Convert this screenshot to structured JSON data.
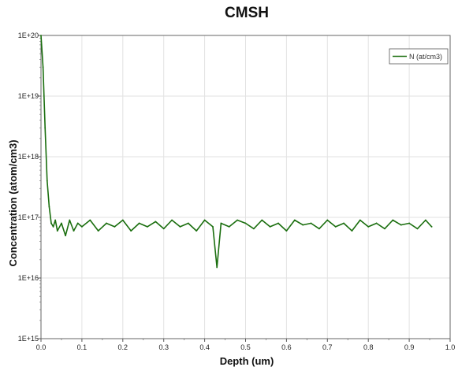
{
  "chart_data": {
    "type": "line",
    "title": "CMSH",
    "xlabel": "Depth (um)",
    "ylabel": "Concentration (atom/cm3)",
    "xlim": [
      0.0,
      1.0
    ],
    "ylim": [
      1000000000000000.0,
      1e+20
    ],
    "y_scale": "log",
    "grid": true,
    "legend_position": "top-right",
    "x_tick_labels": [
      "0.0",
      "0.1",
      "0.2",
      "0.3",
      "0.4",
      "0.5",
      "0.6",
      "0.7",
      "0.8",
      "0.9",
      "1.0"
    ],
    "y_tick_labels": [
      "1E+15",
      "1E+16",
      "1E+17",
      "1E+18",
      "1E+19",
      "1E+20"
    ],
    "series": [
      {
        "name": "N (at/cm3)",
        "color": "#1a6e0e",
        "x": [
          0.0,
          0.005,
          0.01,
          0.015,
          0.02,
          0.025,
          0.03,
          0.035,
          0.04,
          0.05,
          0.06,
          0.07,
          0.08,
          0.09,
          0.1,
          0.12,
          0.14,
          0.16,
          0.18,
          0.2,
          0.22,
          0.24,
          0.26,
          0.28,
          0.3,
          0.32,
          0.34,
          0.36,
          0.38,
          0.4,
          0.42,
          0.43,
          0.44,
          0.46,
          0.48,
          0.5,
          0.52,
          0.54,
          0.56,
          0.58,
          0.6,
          0.62,
          0.64,
          0.66,
          0.68,
          0.7,
          0.72,
          0.74,
          0.76,
          0.78,
          0.8,
          0.82,
          0.84,
          0.86,
          0.88,
          0.9,
          0.92,
          0.94,
          0.955
        ],
        "y": [
          1e+20,
          3e+19,
          3e+18,
          4e+17,
          1.5e+17,
          8e+16,
          7e+16,
          9e+16,
          6e+16,
          8e+16,
          5e+16,
          9e+16,
          6e+16,
          8e+16,
          7e+16,
          9e+16,
          6e+16,
          8e+16,
          7e+16,
          9e+16,
          6e+16,
          8e+16,
          7e+16,
          8.5e+16,
          6.5e+16,
          9e+16,
          7e+16,
          8e+16,
          6e+16,
          9e+16,
          7e+16,
          1.5e+16,
          8e+16,
          7e+16,
          9e+16,
          8e+16,
          6.5e+16,
          9e+16,
          7e+16,
          8e+16,
          6e+16,
          9e+16,
          7.5e+16,
          8e+16,
          6.5e+16,
          9e+16,
          7e+16,
          8e+16,
          6e+16,
          9e+16,
          7e+16,
          8e+16,
          6.5e+16,
          9e+16,
          7.5e+16,
          8e+16,
          6.5e+16,
          9e+16,
          7e+16
        ]
      }
    ]
  }
}
